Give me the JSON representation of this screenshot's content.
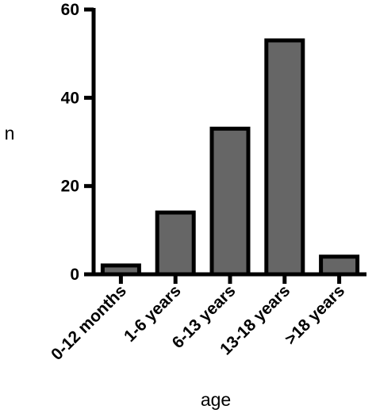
{
  "chart_data": {
    "type": "bar",
    "categories": [
      "0-12 months",
      "1-6 years",
      "6-13 years",
      "13-18 years",
      ">18 years"
    ],
    "values": [
      2,
      14,
      33,
      53,
      4
    ],
    "title": "",
    "xlabel": "age",
    "ylabel": "n",
    "ylim": [
      0,
      60
    ],
    "yticks": [
      "0",
      "20",
      "40",
      "60"
    ],
    "grid": false,
    "bar_color": "#666666",
    "edge_color": "#000000"
  }
}
